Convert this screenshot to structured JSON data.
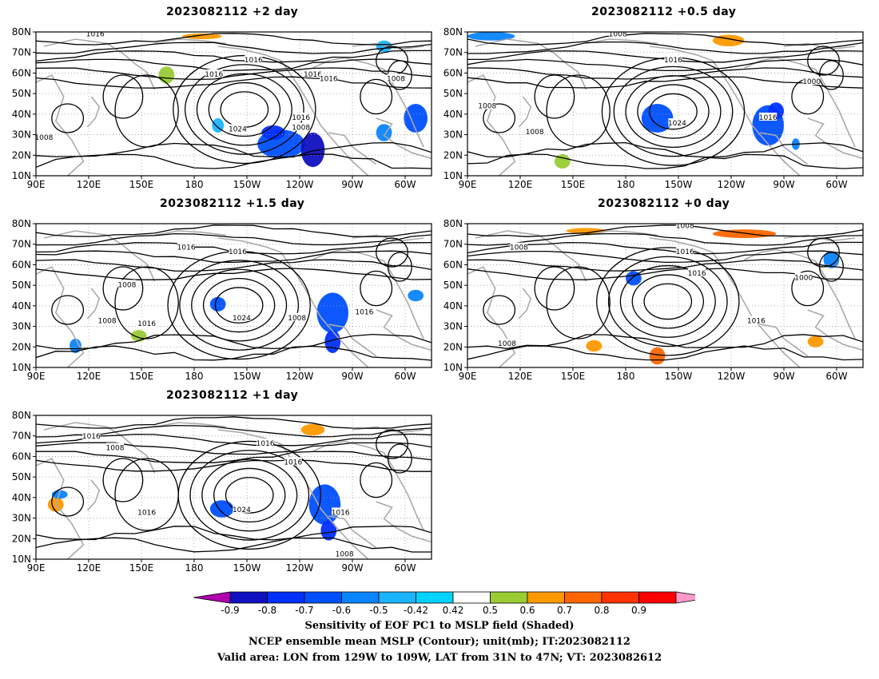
{
  "panels": [
    {
      "id": "p2",
      "title": "2023082112 +2 day",
      "contour_labels": [
        "1016",
        "1016",
        "1016",
        "1016",
        "1024",
        "1016",
        "1008",
        "1016",
        "1008",
        "1008"
      ]
    },
    {
      "id": "p05",
      "title": "2023082112 +0.5 day",
      "contour_labels": [
        "1008",
        "1016",
        "1008",
        "1008",
        "1024",
        "1016",
        "1000"
      ]
    },
    {
      "id": "p15",
      "title": "2023082112 +1.5 day",
      "contour_labels": [
        "1016",
        "1016",
        "1008",
        "1008",
        "1016",
        "1024",
        "1008",
        "1016"
      ]
    },
    {
      "id": "p0",
      "title": "2023082112 +0 day",
      "contour_labels": [
        "1008",
        "1008",
        "1016",
        "1016",
        "1000",
        "1008",
        "1016"
      ]
    },
    {
      "id": "p1",
      "title": "2023082112 +1 day",
      "contour_labels": [
        "1016",
        "1008",
        "1016",
        "1016",
        "1016",
        "1024",
        "1016",
        "1008"
      ]
    }
  ],
  "axes": {
    "lon_labels": [
      "90E",
      "120E",
      "150E",
      "180",
      "150W",
      "120W",
      "90W",
      "60W"
    ],
    "lat_labels": [
      "10N",
      "20N",
      "30N",
      "40N",
      "50N",
      "60N",
      "70N",
      "80N"
    ]
  },
  "colorbar": {
    "ticks": [
      "-0.9",
      "-0.8",
      "-0.7",
      "-0.6",
      "-0.5",
      "-0.42",
      "0.42",
      "0.5",
      "0.6",
      "0.7",
      "0.8",
      "0.9"
    ],
    "colors": [
      "#b000b0",
      "#1010c0",
      "#0030ff",
      "#0050ff",
      "#0a84ff",
      "#1cb4ff",
      "#00d2ff",
      "#ffffff",
      "#99cc33",
      "#ff9900",
      "#ff6600",
      "#ff3300",
      "#ff0000",
      "#ff99cc"
    ]
  },
  "caption": {
    "line1": "Sensitivity of EOF PC1 to MSLP field (Shaded)",
    "line2": "NCEP ensemble mean MSLP (Contour); unit(mb); IT:2023082112",
    "line3": "Valid area: LON from 129W to 109W, LAT from 31N to 47N; VT: 2023082612"
  }
}
